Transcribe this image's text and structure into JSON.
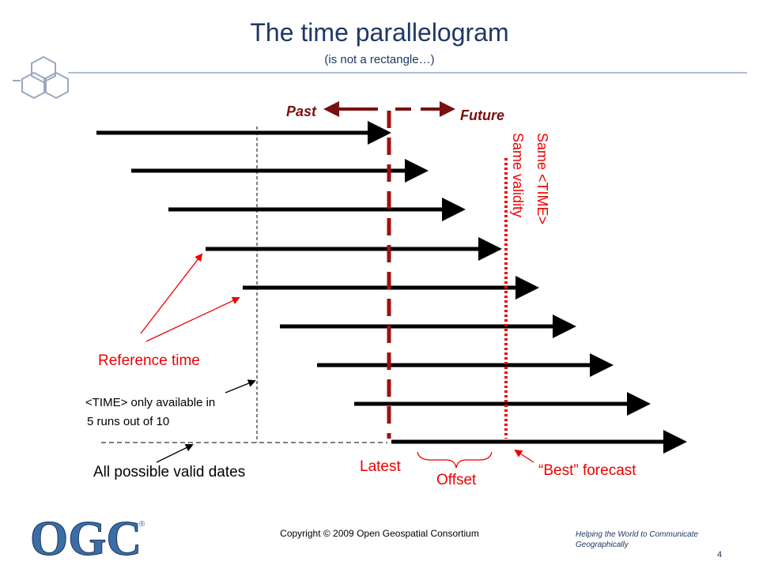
{
  "header": {
    "title": "The time parallelogram",
    "subtitle": "(is not a rectangle…)"
  },
  "labels": {
    "past": "Past",
    "future": "Future",
    "same_time": "Same <TIME>",
    "same_validity": "Same validity",
    "reference_time": "Reference time",
    "time_only_1": "<TIME> only available in",
    "time_only_2": "5 runs out of 10",
    "all_valid": "All possible valid dates",
    "latest": "Latest",
    "offset": "Offset",
    "best": "“Best” forecast"
  },
  "footer": {
    "logo": "OGC",
    "registered": "®",
    "copyright": "Copyright © 2009 Open Geospatial Consortium",
    "tagline_1": "Helping the World to Communicate",
    "tagline_2": "Geographically",
    "page": "4"
  }
}
